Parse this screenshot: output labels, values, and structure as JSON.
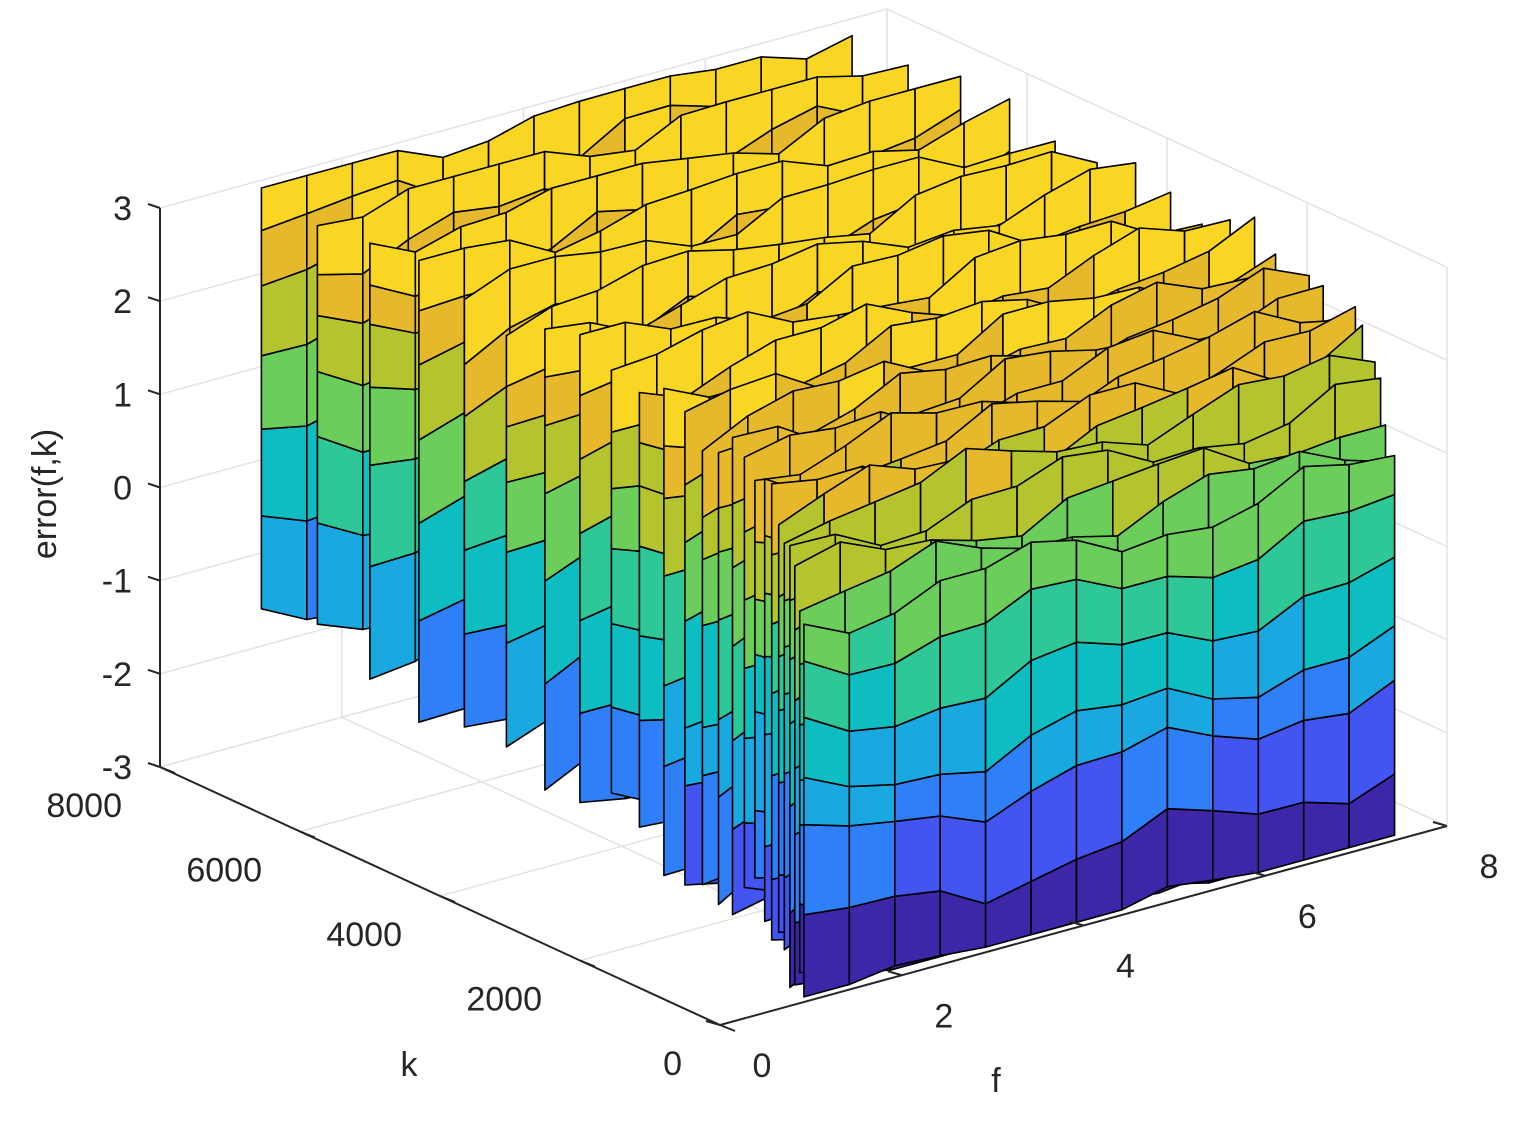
{
  "chart_data": {
    "type": "surface3d",
    "xlabel": "f",
    "ylabel": "k",
    "zlabel": "error(f,k)",
    "xlim": [
      0,
      8
    ],
    "ylim": [
      0,
      8000
    ],
    "zlim": [
      -3,
      3
    ],
    "xticks": [
      "0",
      "2",
      "4",
      "6",
      "8"
    ],
    "yticks": [
      "0",
      "2000",
      "4000",
      "6000",
      "8000"
    ],
    "zticks": [
      "-3",
      "-2",
      "-1",
      "0",
      "1",
      "2",
      "3"
    ],
    "grid": true,
    "colormap": [
      "#3e26a8",
      "#4255f0",
      "#2f7ff9",
      "#1aa8e0",
      "#0ebdc2",
      "#2ec797",
      "#6bcd5a",
      "#b4c42f",
      "#e6b82b",
      "#f9d623"
    ],
    "f_values": [
      1,
      1.5,
      2,
      2.5,
      3,
      3.5,
      4,
      4.5,
      5,
      5.5,
      6,
      6.5,
      7,
      7.5
    ],
    "k_values": [
      100,
      160,
      230,
      300,
      380,
      460,
      560,
      660,
      800,
      950,
      1120,
      1320,
      1550,
      1800,
      2100,
      2450,
      2850,
      3300,
      3800,
      4350,
      4950,
      5600,
      6300,
      7050,
      7850
    ],
    "sheet_levels": [
      {
        "k": 100,
        "z": [
          -3.1,
          -2.3,
          -1.4,
          -0.9,
          -0.2,
          0.5,
          1.0
        ]
      },
      {
        "k": 380,
        "z": [
          -2.6,
          -1.9,
          -0.8,
          0.1,
          0.7,
          1.3,
          2.0
        ]
      },
      {
        "k": 800,
        "z": [
          -2.2,
          -1.5,
          -0.4,
          0.3,
          1.0,
          1.7,
          2.4
        ]
      },
      {
        "k": 1550,
        "z": [
          -2.4,
          -1.2,
          -0.6,
          0.6,
          1.4,
          1.9,
          2.6
        ]
      },
      {
        "k": 2850,
        "z": [
          -2.0,
          -1.0,
          0.0,
          0.9,
          1.6,
          2.2,
          2.8
        ]
      },
      {
        "k": 4950,
        "z": [
          -1.8,
          -0.7,
          0.3,
          1.1,
          1.8,
          2.3,
          2.9
        ]
      },
      {
        "k": 7850,
        "z": [
          -1.6,
          -0.5,
          0.5,
          1.3,
          2.0,
          2.5,
          3.0
        ]
      }
    ]
  }
}
